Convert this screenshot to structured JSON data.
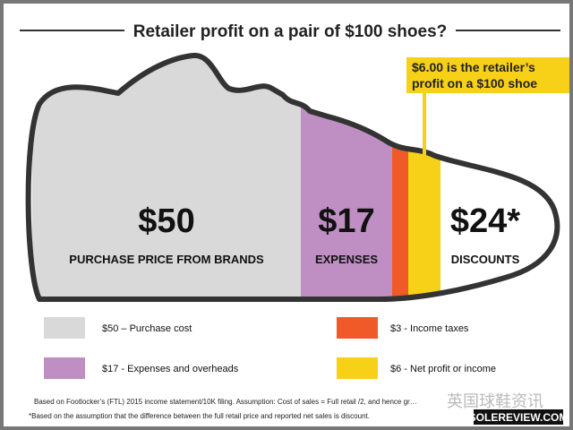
{
  "chart_data": {
    "type": "bar",
    "stacked": true,
    "title": "Retailer profit on a pair of $100 shoes?",
    "categories": [
      "Purchase price from brands",
      "Expenses",
      "Income taxes",
      "Net profit or income",
      "Discounts"
    ],
    "values": [
      50,
      17,
      3,
      6,
      24
    ],
    "colors": [
      "#d9d9d9",
      "#bf8fc4",
      "#f05a28",
      "#f7d117",
      "#ffffff"
    ],
    "segment_labels": [
      {
        "value": "$50",
        "label": "PURCHASE PRICE FROM BRANDS"
      },
      {
        "value": "$17",
        "label": "EXPENSES"
      },
      {
        "value": "",
        "label": ""
      },
      {
        "value": "",
        "label": ""
      },
      {
        "value": "$24*",
        "label": "DISCOUNTS"
      }
    ],
    "callout": [
      "$6.00 is the retailer’s",
      "profit on a $100 shoe"
    ],
    "legend": [
      {
        "label": "$50 – Purchase cost",
        "color": "#d9d9d9"
      },
      {
        "label": "$17 - Expenses and overheads",
        "color": "#bf8fc4"
      },
      {
        "label": "$3 - Income taxes",
        "color": "#f05a28"
      },
      {
        "label": "$6 - Net profit or income",
        "color": "#f7d117"
      }
    ],
    "notes": [
      "Based on Footlocker’s (FTL) 2015 income statement/10K filing. Assumption: Cost of sales = Full retail /2, and hence gr…",
      "*Based on the assumption that the difference between the full retail price and reported  net sales is discount."
    ]
  },
  "watermark": {
    "wechat": "英国球鞋资讯",
    "site": "SOLEREVIEW.COM"
  }
}
